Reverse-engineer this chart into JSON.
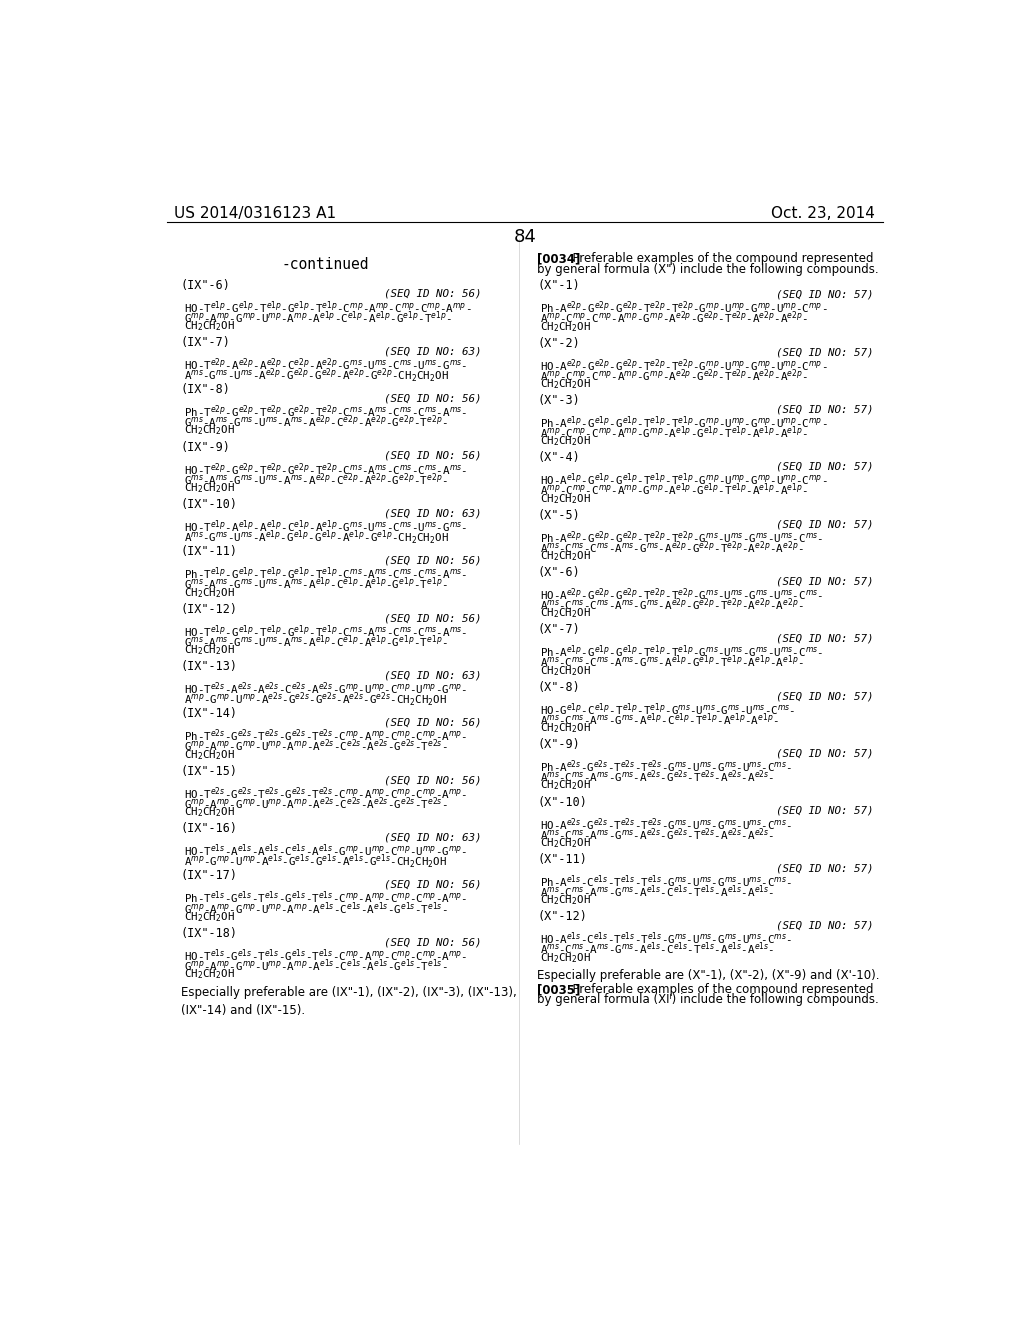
{
  "background_color": "#ffffff",
  "page_header_left": "US 2014/0316123 A1",
  "page_header_right": "Oct. 23, 2014",
  "page_number": "84",
  "continued_label": "-continued",
  "left_entries": [
    {
      "label": "(IX\"-6)",
      "seq": "(SEQ ID NO: 56)",
      "lines": [
        "HO-T$^{e1p}$-G$^{e1p}$-T$^{e1p}$-G$^{e1p}$-T$^{e1p}$-C$^{mp}$-A$^{mp}$-C$^{mp}$-C$^{mp}$-A$^{mp}$-",
        "G$^{mp}$-A$^{mp}$-G$^{mp}$-U$^{mp}$-A$^{mp}$-A$^{e1p}$-C$^{e1p}$-A$^{e1p}$-G$^{e1p}$-T$^{e1p}$-",
        "CH$_2$CH$_2$OH"
      ]
    },
    {
      "label": "(IX\"-7)",
      "seq": "(SEQ ID NO: 63)",
      "lines": [
        "HO-T$^{e2p}$-A$^{e2p}$-A$^{e2p}$-C$^{e2p}$-A$^{e2p}$-G$^{ms}$-U$^{ms}$-C$^{ms}$-U$^{ms}$-G$^{ms}$-",
        "A$^{ms}$-G$^{ms}$-U$^{ms}$-A$^{e2p}$-G$^{e2p}$-G$^{e2p}$-A$^{e2p}$-G$^{e2p}$-CH$_2$CH$_2$OH"
      ]
    },
    {
      "label": "(IX\"-8)",
      "seq": "(SEQ ID NO: 56)",
      "lines": [
        "Ph-T$^{e2p}$-G$^{e2p}$-T$^{e2p}$-G$^{e2p}$-T$^{e2p}$-C$^{ms}$-A$^{ms}$-C$^{ms}$-C$^{ms}$-A$^{ms}$-",
        "G$^{ms}$-A$^{ms}$-G$^{ms}$-U$^{ms}$-A$^{ms}$-A$^{e2p}$-C$^{e2p}$-A$^{e2p}$-G$^{e2p}$-T$^{e2p}$-",
        "CH$_2$CH$_2$OH"
      ]
    },
    {
      "label": "(IX\"-9)",
      "seq": "(SEQ ID NO: 56)",
      "lines": [
        "HO-T$^{e2p}$-G$^{e2p}$-T$^{e2p}$-G$^{e2p}$-T$^{e2p}$-C$^{ms}$-A$^{ms}$-C$^{ms}$-C$^{ms}$-A$^{ms}$-",
        "G$^{ms}$-A$^{ms}$-G$^{ms}$-U$^{ms}$-A$^{ms}$-A$^{e2p}$-C$^{e2p}$-A$^{e2p}$-G$^{e2p}$-T$^{e2p}$-",
        "CH$_2$CH$_2$OH"
      ]
    },
    {
      "label": "(IX\"-10)",
      "seq": "(SEQ ID NO: 63)",
      "lines": [
        "HO-T$^{e1p}$-A$^{e1p}$-A$^{e1p}$-C$^{e1p}$-A$^{e1p}$-G$^{ms}$-U$^{ms}$-C$^{ms}$-U$^{ms}$-G$^{ms}$-",
        "A$^{ms}$-G$^{ms}$-U$^{ms}$-A$^{e1p}$-G$^{e1p}$-G$^{e1p}$-A$^{e1p}$-G$^{e1p}$-CH$_2$CH$_2$OH"
      ]
    },
    {
      "label": "(IX\"-11)",
      "seq": "(SEQ ID NO: 56)",
      "lines": [
        "Ph-T$^{e1p}$-G$^{e1p}$-T$^{e1p}$-G$^{e1p}$-T$^{e1p}$-C$^{ms}$-A$^{ms}$-C$^{ms}$-C$^{ms}$-A$^{ms}$-",
        "G$^{ms}$-A$^{ms}$-G$^{ms}$-U$^{ms}$-A$^{ms}$-A$^{e1p}$-C$^{e1p}$-A$^{e1p}$-G$^{e1p}$-T$^{e1p}$-",
        "CH$_2$CH$_2$OH"
      ]
    },
    {
      "label": "(IX\"-12)",
      "seq": "(SEQ ID NO: 56)",
      "lines": [
        "HO-T$^{e1p}$-G$^{e1p}$-T$^{e1p}$-G$^{e1p}$-T$^{e1p}$-C$^{ms}$-A$^{ms}$-C$^{ms}$-C$^{ms}$-A$^{ms}$-",
        "G$^{ms}$-A$^{ms}$-G$^{ms}$-U$^{ms}$-A$^{ms}$-A$^{e1p}$-C$^{e1p}$-A$^{e1p}$-G$^{e1p}$-T$^{e1p}$-",
        "CH$_2$CH$_2$OH"
      ]
    },
    {
      "label": "(IX\"-13)",
      "seq": "(SEQ ID NO: 63)",
      "lines": [
        "HO-T$^{e2s}$-A$^{e2s}$-A$^{e2s}$-C$^{e2s}$-A$^{e2s}$-G$^{mp}$-U$^{mp}$-C$^{mp}$-U$^{mp}$-G$^{mp}$-",
        "A$^{mp}$-G$^{mp}$-U$^{mp}$-A$^{e2s}$-G$^{e2s}$-G$^{e2s}$-A$^{e2s}$-G$^{e2s}$-CH$_2$CH$_2$OH"
      ]
    },
    {
      "label": "(IX\"-14)",
      "seq": "(SEQ ID NO: 56)",
      "lines": [
        "Ph-T$^{e2s}$-G$^{e2s}$-T$^{e2s}$-G$^{e2s}$-T$^{e2s}$-C$^{mp}$-A$^{mp}$-C$^{mp}$-C$^{mp}$-A$^{mp}$-",
        "G$^{mp}$-A$^{mp}$-G$^{mp}$-U$^{mp}$-A$^{mp}$-A$^{e2s}$-C$^{e2s}$-A$^{e2s}$-G$^{e2s}$-T$^{e2s}$-",
        "CH$_2$CH$_2$OH"
      ]
    },
    {
      "label": "(IX\"-15)",
      "seq": "(SEQ ID NO: 56)",
      "lines": [
        "HO-T$^{e2s}$-G$^{e2s}$-T$^{e2s}$-G$^{e2s}$-T$^{e2s}$-C$^{mp}$-A$^{mp}$-C$^{mp}$-C$^{mp}$-A$^{mp}$-",
        "G$^{mp}$-A$^{mp}$-G$^{mp}$-U$^{mp}$-A$^{mp}$-A$^{e2s}$-C$^{e2s}$-A$^{e2s}$-G$^{e2s}$-T$^{e2s}$-",
        "CH$_2$CH$_2$OH"
      ]
    },
    {
      "label": "(IX\"-16)",
      "seq": "(SEQ ID NO: 63)",
      "lines": [
        "HO-T$^{e1s}$-A$^{e1s}$-A$^{e1s}$-C$^{e1s}$-A$^{e1s}$-G$^{mp}$-U$^{mp}$-C$^{mp}$-U$^{mp}$-G$^{mp}$-",
        "A$^{mp}$-G$^{mp}$-U$^{mp}$-A$^{e1s}$-G$^{e1s}$-G$^{e1s}$-A$^{e1s}$-G$^{e1s}$-CH$_2$CH$_2$OH"
      ]
    },
    {
      "label": "(IX\"-17)",
      "seq": "(SEQ ID NO: 56)",
      "lines": [
        "Ph-T$^{e1s}$-G$^{e1s}$-T$^{e1s}$-G$^{e1s}$-T$^{e1s}$-C$^{mp}$-A$^{mp}$-C$^{mp}$-C$^{mp}$-A$^{mp}$-",
        "G$^{mp}$-A$^{mp}$-G$^{mp}$-U$^{mp}$-A$^{mp}$-A$^{e1s}$-C$^{e1s}$-A$^{e1s}$-G$^{e1s}$-T$^{e1s}$-",
        "CH$_2$CH$_2$OH"
      ]
    },
    {
      "label": "(IX\"-18)",
      "seq": "(SEQ ID NO: 56)",
      "lines": [
        "HO-T$^{e1s}$-G$^{e1s}$-T$^{e1s}$-G$^{e1s}$-T$^{e1s}$-C$^{mp}$-A$^{mp}$-C$^{mp}$-C$^{mp}$-A$^{mp}$-",
        "G$^{mp}$-A$^{mp}$-G$^{mp}$-U$^{mp}$-A$^{mp}$-A$^{e1s}$-C$^{e1s}$-A$^{e1s}$-G$^{e1s}$-T$^{e1s}$-",
        "CH$_2$CH$_2$OH"
      ]
    }
  ],
  "left_footer": "Especially preferable are (IX\"-1), (IX\"-2), (IX\"-3), (IX\"-13),\n(IX\"-14) and (IX\"-15).",
  "right_header_bold": "[0034]",
  "right_header_text": "  Preferable examples of the compound represented\nby general formula (X\") include the following compounds.",
  "right_entries": [
    {
      "label": "(X\"-1)",
      "seq": "(SEQ ID NO: 57)",
      "lines": [
        "Ph-A$^{e2p}$-G$^{e2p}$-G$^{e2p}$-T$^{e2p}$-T$^{e2p}$-G$^{mp}$-U$^{mp}$-G$^{mp}$-U$^{mp}$-C$^{mp}$-",
        "A$^{mp}$-C$^{mp}$-C$^{mp}$-A$^{mp}$-G$^{mp}$-A$^{e2p}$-G$^{e2p}$-T$^{e2p}$-A$^{e2p}$-A$^{e2p}$-",
        "CH$_2$CH$_2$OH"
      ]
    },
    {
      "label": "(X\"-2)",
      "seq": "(SEQ ID NO: 57)",
      "lines": [
        "HO-A$^{e2p}$-G$^{e2p}$-G$^{e2p}$-T$^{e2p}$-T$^{e2p}$-G$^{mp}$-U$^{mp}$-G$^{mp}$-U$^{mp}$-C$^{mp}$-",
        "A$^{mp}$-C$^{mp}$-C$^{mp}$-A$^{mp}$-G$^{mp}$-A$^{e2p}$-G$^{e2p}$-T$^{e2p}$-A$^{e2p}$-A$^{e2p}$-",
        "CH$_2$CH$_2$OH"
      ]
    },
    {
      "label": "(X\"-3)",
      "seq": "(SEQ ID NO: 57)",
      "lines": [
        "Ph-A$^{e1p}$-G$^{e1p}$-G$^{e1p}$-T$^{e1p}$-T$^{e1p}$-G$^{mp}$-U$^{mp}$-G$^{mp}$-U$^{mp}$-C$^{mp}$-",
        "A$^{mp}$-C$^{mp}$-C$^{mp}$-A$^{mp}$-G$^{mp}$-A$^{e1p}$-G$^{e1p}$-T$^{e1p}$-A$^{e1p}$-A$^{e1p}$-",
        "CH$_2$CH$_2$OH"
      ]
    },
    {
      "label": "(X\"-4)",
      "seq": "(SEQ ID NO: 57)",
      "lines": [
        "HO-A$^{e1p}$-G$^{e1p}$-G$^{e1p}$-T$^{e1p}$-T$^{e1p}$-G$^{mp}$-U$^{mp}$-G$^{mp}$-U$^{mp}$-C$^{mp}$-",
        "A$^{mp}$-C$^{mp}$-C$^{mp}$-A$^{mp}$-G$^{mp}$-A$^{e1p}$-G$^{e1p}$-T$^{e1p}$-A$^{e1p}$-A$^{e1p}$-",
        "CH$_2$CH$_2$OH"
      ]
    },
    {
      "label": "(X\"-5)",
      "seq": "(SEQ ID NO: 57)",
      "lines": [
        "Ph-A$^{e2p}$-G$^{e2p}$-G$^{e2p}$-T$^{e2p}$-T$^{e2p}$-G$^{ms}$-U$^{ms}$-G$^{ms}$-U$^{ms}$-C$^{ms}$-",
        "A$^{ms}$-C$^{ms}$-C$^{ms}$-A$^{ms}$-G$^{ms}$-A$^{e2p}$-G$^{e2p}$-T$^{e2p}$-A$^{e2p}$-A$^{e2p}$-",
        "CH$_2$CH$_2$OH"
      ]
    },
    {
      "label": "(X\"-6)",
      "seq": "(SEQ ID NO: 57)",
      "lines": [
        "HO-A$^{e2p}$-G$^{e2p}$-G$^{e2p}$-T$^{e2p}$-T$^{e2p}$-G$^{ms}$-U$^{ms}$-G$^{ms}$-U$^{ms}$-C$^{ms}$-",
        "A$^{ms}$-C$^{ms}$-C$^{ms}$-A$^{ms}$-G$^{ms}$-A$^{e2p}$-G$^{e2p}$-T$^{e2p}$-A$^{e2p}$-A$^{e2p}$-",
        "CH$_2$CH$_2$OH"
      ]
    },
    {
      "label": "(X\"-7)",
      "seq": "(SEQ ID NO: 57)",
      "lines": [
        "Ph-A$^{e1p}$-G$^{e1p}$-G$^{e1p}$-T$^{e1p}$-T$^{e1p}$-G$^{ms}$-U$^{ms}$-G$^{ms}$-U$^{ms}$-C$^{ms}$-",
        "A$^{ms}$-C$^{ms}$-C$^{ms}$-A$^{ms}$-G$^{ms}$-A$^{e1p}$-G$^{e1p}$-T$^{e1p}$-A$^{e1p}$-A$^{e1p}$-",
        "CH$_2$CH$_2$OH"
      ]
    },
    {
      "label": "(X\"-8)",
      "seq": "(SEQ ID NO: 57)",
      "lines": [
        "HO-G$^{e1p}$-C$^{e1p}$-T$^{e1p}$-T$^{e1p}$-G$^{ms}$-U$^{ms}$-G$^{ms}$-U$^{ms}$-C$^{ms}$-",
        "A$^{ms}$-C$^{ms}$-A$^{ms}$-G$^{ms}$-A$^{e1p}$-C$^{e1p}$-T$^{e1p}$-A$^{e1p}$-A$^{e1p}$-",
        "CH$_2$CH$_2$OH"
      ]
    },
    {
      "label": "(X\"-9)",
      "seq": "(SEQ ID NO: 57)",
      "lines": [
        "Ph-A$^{e2s}$-G$^{e2s}$-T$^{e2s}$-T$^{e2s}$-G$^{ms}$-U$^{ms}$-G$^{ms}$-U$^{ms}$-C$^{ms}$-",
        "A$^{ms}$-C$^{ms}$-A$^{ms}$-G$^{ms}$-A$^{e2s}$-G$^{e2s}$-T$^{e2s}$-A$^{e2s}$-A$^{e2s}$-",
        "CH$_2$CH$_2$OH"
      ]
    },
    {
      "label": "(X\"-10)",
      "seq": "(SEQ ID NO: 57)",
      "lines": [
        "HO-A$^{e2s}$-G$^{e2s}$-T$^{e2s}$-T$^{e2s}$-G$^{ms}$-U$^{ms}$-G$^{ms}$-U$^{ms}$-C$^{ms}$-",
        "A$^{ms}$-C$^{ms}$-A$^{ms}$-G$^{ms}$-A$^{e2s}$-G$^{e2s}$-T$^{e2s}$-A$^{e2s}$-A$^{e2s}$-",
        "CH$_2$CH$_2$OH"
      ]
    },
    {
      "label": "(X\"-11)",
      "seq": "(SEQ ID NO: 57)",
      "lines": [
        "Ph-A$^{e1s}$-C$^{e1s}$-T$^{e1s}$-T$^{e1s}$-G$^{ms}$-U$^{ms}$-G$^{ms}$-U$^{ms}$-C$^{ms}$-",
        "A$^{ms}$-C$^{ms}$-A$^{ms}$-G$^{ms}$-A$^{e1s}$-C$^{e1s}$-T$^{e1s}$-A$^{e1s}$-A$^{e1s}$-",
        "CH$_2$CH$_2$OH"
      ]
    },
    {
      "label": "(X\"-12)",
      "seq": "(SEQ ID NO: 57)",
      "lines": [
        "HO-A$^{e1s}$-C$^{e1s}$-T$^{e1s}$-T$^{e1s}$-G$^{ms}$-U$^{ms}$-G$^{ms}$-U$^{ms}$-C$^{ms}$-",
        "A$^{ms}$-C$^{ms}$-A$^{ms}$-G$^{ms}$-A$^{e1s}$-C$^{e1s}$-T$^{e1s}$-A$^{e1s}$-A$^{e1s}$-",
        "CH$_2$CH$_2$OH"
      ]
    }
  ],
  "right_footer_1": "Especially preferable are (X\"-1), (X\"-2), (X\"-9) and (X'-10).",
  "right_footer_2": "[0035]  Preferable examples of the compound represented\nby general formula (XIᴵ) include the following compounds."
}
